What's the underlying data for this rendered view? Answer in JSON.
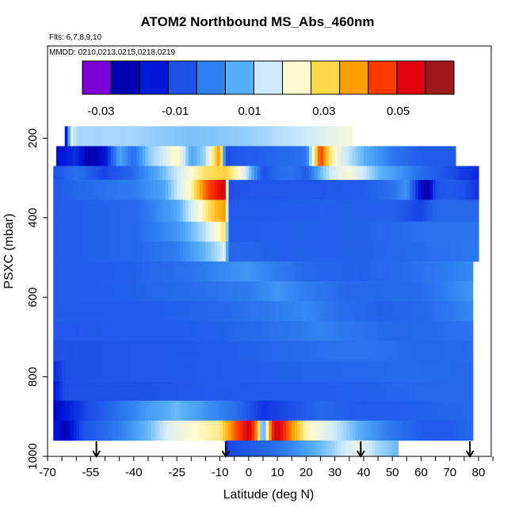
{
  "chart_data": {
    "type": "heatmap",
    "title": "ATOM2 Northbound MS_Abs_460nm",
    "subtitle_flts": "Flts: 6,7,8,9,10",
    "subtitle_mmdd": "MMDD: 0210,0213,0215,0218,0219",
    "xlabel": "Latitude (deg N)",
    "ylabel": "PSXC (mbar)",
    "xlim": [
      -70,
      85
    ],
    "ylim": [
      1000,
      0
    ],
    "x_ticks": [
      -70,
      -55,
      -40,
      -25,
      -10,
      0,
      10,
      20,
      30,
      40,
      50,
      60,
      70,
      80
    ],
    "x_tick_labels": [
      "-70",
      "-55",
      "-40",
      "-25",
      "-10",
      "0",
      "10",
      "20",
      "30",
      "40",
      "50",
      "60",
      "70",
      "80"
    ],
    "y_ticks": [
      200,
      400,
      600,
      800,
      1000
    ],
    "y_tick_labels": [
      "200",
      "400",
      "600",
      "800",
      "1000"
    ],
    "colorbar": {
      "min": -0.035,
      "max": 0.065,
      "tick_values": [
        -0.03,
        -0.01,
        0.01,
        0.03,
        0.05
      ],
      "tick_labels": [
        "-0.03",
        "-0.01",
        "0.01",
        "0.03",
        "0.05"
      ],
      "colors": [
        "#7a00d6",
        "#0000b0",
        "#0018d8",
        "#1e50e8",
        "#2e7ff0",
        "#58b0f8",
        "#cfeafc",
        "#fffbd0",
        "#ffd84a",
        "#ff9e00",
        "#ff3a00",
        "#e00010",
        "#9e1a1a"
      ]
    },
    "profile_markers_lat": [
      -53,
      -8,
      39,
      77
    ],
    "layers": [
      {
        "p_top": 170,
        "p_bot": 220,
        "lat_min": -64,
        "lat_max": 36,
        "nodes": [
          [
            -64,
            -0.033
          ],
          [
            -62,
            0.02
          ],
          [
            -60,
            0.012
          ],
          [
            -40,
            0.012
          ],
          [
            -20,
            0.009
          ],
          [
            0,
            0.011
          ],
          [
            20,
            0.015
          ],
          [
            36,
            0.022
          ]
        ]
      },
      {
        "p_top": 220,
        "p_bot": 270,
        "lat_min": -67,
        "lat_max": 72,
        "nodes": [
          [
            -67,
            -0.02
          ],
          [
            -60,
            -0.015
          ],
          [
            -55,
            -0.028
          ],
          [
            -50,
            -0.02
          ],
          [
            -45,
            0.005
          ],
          [
            -40,
            -0.005
          ],
          [
            -35,
            0.01
          ],
          [
            -30,
            0.015
          ],
          [
            -25,
            0.025
          ],
          [
            -20,
            0.005
          ],
          [
            -15,
            0.012
          ],
          [
            -10,
            0.042
          ],
          [
            -8,
            -0.01
          ],
          [
            0,
            -0.008
          ],
          [
            10,
            -0.006
          ],
          [
            20,
            -0.004
          ],
          [
            25,
            0.05
          ],
          [
            28,
            0.03
          ],
          [
            32,
            0.018
          ],
          [
            40,
            0.007
          ],
          [
            50,
            -0.003
          ],
          [
            60,
            -0.008
          ],
          [
            72,
            -0.008
          ]
        ]
      },
      {
        "p_top": 270,
        "p_bot": 305,
        "lat_min": -68,
        "lat_max": 80,
        "nodes": [
          [
            -68,
            -0.01
          ],
          [
            -60,
            -0.004
          ],
          [
            -50,
            -0.012
          ],
          [
            -40,
            -0.005
          ],
          [
            -30,
            0.008
          ],
          [
            -25,
            0.015
          ],
          [
            -15,
            0.03
          ],
          [
            -8,
            0.033
          ],
          [
            -2,
            0.02
          ],
          [
            5,
            -0.01
          ],
          [
            10,
            -0.005
          ],
          [
            15,
            -0.004
          ],
          [
            20,
            -0.008
          ],
          [
            25,
            0.008
          ],
          [
            30,
            0.018
          ],
          [
            35,
            0.022
          ],
          [
            45,
            0.008
          ],
          [
            55,
            0.0
          ],
          [
            60,
            -0.005
          ],
          [
            70,
            -0.01
          ],
          [
            80,
            -0.016
          ]
        ]
      },
      {
        "p_top": 305,
        "p_bot": 355,
        "lat_min": -68,
        "lat_max": 80,
        "nodes": [
          [
            -68,
            -0.008
          ],
          [
            -50,
            -0.004
          ],
          [
            -40,
            -0.002
          ],
          [
            -30,
            0.004
          ],
          [
            -20,
            0.025
          ],
          [
            -15,
            0.045
          ],
          [
            -10,
            0.055
          ],
          [
            -8,
            0.06
          ],
          [
            -7,
            -0.01
          ],
          [
            0,
            -0.009
          ],
          [
            20,
            -0.009
          ],
          [
            40,
            -0.008
          ],
          [
            50,
            -0.004
          ],
          [
            55,
            0.002
          ],
          [
            62,
            -0.03
          ],
          [
            65,
            -0.01
          ],
          [
            70,
            -0.008
          ],
          [
            75,
            -0.01
          ],
          [
            80,
            -0.014
          ]
        ]
      },
      {
        "p_top": 355,
        "p_bot": 410,
        "lat_min": -68,
        "lat_max": 80,
        "nodes": [
          [
            -68,
            -0.008
          ],
          [
            -40,
            -0.006
          ],
          [
            -25,
            0.005
          ],
          [
            -18,
            0.02
          ],
          [
            -12,
            0.035
          ],
          [
            -8,
            0.04
          ],
          [
            -7,
            -0.008
          ],
          [
            10,
            -0.008
          ],
          [
            30,
            -0.007
          ],
          [
            50,
            -0.007
          ],
          [
            60,
            -0.012
          ],
          [
            65,
            -0.006
          ],
          [
            80,
            -0.006
          ]
        ]
      },
      {
        "p_top": 410,
        "p_bot": 460,
        "lat_min": -68,
        "lat_max": 80,
        "nodes": [
          [
            -68,
            -0.008
          ],
          [
            -40,
            -0.006
          ],
          [
            -25,
            0.002
          ],
          [
            -15,
            0.014
          ],
          [
            -10,
            0.025
          ],
          [
            -8,
            0.03
          ],
          [
            -7,
            -0.008
          ],
          [
            10,
            -0.007
          ],
          [
            40,
            -0.007
          ],
          [
            60,
            -0.004
          ],
          [
            80,
            -0.004
          ]
        ]
      },
      {
        "p_top": 460,
        "p_bot": 510,
        "lat_min": -68,
        "lat_max": 80,
        "nodes": [
          [
            -68,
            -0.008
          ],
          [
            -40,
            -0.006
          ],
          [
            -25,
            -0.002
          ],
          [
            -15,
            0.008
          ],
          [
            -9,
            0.015
          ],
          [
            -8,
            0.018
          ],
          [
            -7,
            -0.006
          ],
          [
            10,
            -0.007
          ],
          [
            40,
            -0.007
          ],
          [
            60,
            -0.005
          ],
          [
            80,
            -0.003
          ]
        ]
      },
      {
        "p_top": 510,
        "p_bot": 560,
        "lat_min": -68,
        "lat_max": 78,
        "nodes": [
          [
            -68,
            -0.008
          ],
          [
            -40,
            -0.007
          ],
          [
            -20,
            -0.004
          ],
          [
            -10,
            0.0
          ],
          [
            0,
            0.002
          ],
          [
            10,
            -0.002
          ],
          [
            20,
            -0.006
          ],
          [
            40,
            -0.007
          ],
          [
            60,
            -0.004
          ],
          [
            78,
            0.0
          ]
        ]
      },
      {
        "p_top": 560,
        "p_bot": 610,
        "lat_min": -68,
        "lat_max": 78,
        "nodes": [
          [
            -68,
            -0.008
          ],
          [
            -40,
            -0.007
          ],
          [
            -20,
            -0.005
          ],
          [
            0,
            -0.002
          ],
          [
            10,
            0.002
          ],
          [
            20,
            -0.002
          ],
          [
            35,
            -0.006
          ],
          [
            60,
            -0.005
          ],
          [
            78,
            0.002
          ]
        ]
      },
      {
        "p_top": 610,
        "p_bot": 660,
        "lat_min": -68,
        "lat_max": 78,
        "nodes": [
          [
            -68,
            -0.008
          ],
          [
            -40,
            -0.008
          ],
          [
            -10,
            -0.006
          ],
          [
            10,
            -0.002
          ],
          [
            20,
            0.0
          ],
          [
            30,
            -0.004
          ],
          [
            45,
            -0.007
          ],
          [
            60,
            -0.006
          ],
          [
            78,
            0.0
          ]
        ]
      },
      {
        "p_top": 660,
        "p_bot": 710,
        "lat_min": -68,
        "lat_max": 78,
        "nodes": [
          [
            -68,
            -0.009
          ],
          [
            -40,
            -0.008
          ],
          [
            -10,
            -0.007
          ],
          [
            10,
            -0.004
          ],
          [
            25,
            -0.001
          ],
          [
            35,
            -0.003
          ],
          [
            50,
            -0.006
          ],
          [
            78,
            -0.004
          ]
        ]
      },
      {
        "p_top": 710,
        "p_bot": 760,
        "lat_min": -68,
        "lat_max": 78,
        "nodes": [
          [
            -68,
            -0.01
          ],
          [
            -40,
            -0.009
          ],
          [
            -10,
            -0.008
          ],
          [
            10,
            -0.006
          ],
          [
            30,
            -0.004
          ],
          [
            45,
            -0.004
          ],
          [
            60,
            -0.006
          ],
          [
            78,
            -0.005
          ]
        ]
      },
      {
        "p_top": 760,
        "p_bot": 810,
        "lat_min": -68,
        "lat_max": 78,
        "nodes": [
          [
            -68,
            -0.016
          ],
          [
            -64,
            -0.01
          ],
          [
            -40,
            -0.009
          ],
          [
            -10,
            -0.008
          ],
          [
            10,
            -0.007
          ],
          [
            40,
            -0.006
          ],
          [
            60,
            -0.005
          ],
          [
            78,
            -0.006
          ]
        ]
      },
      {
        "p_top": 810,
        "p_bot": 860,
        "lat_min": -68,
        "lat_max": 78,
        "nodes": [
          [
            -68,
            -0.02
          ],
          [
            -64,
            -0.01
          ],
          [
            -40,
            -0.01
          ],
          [
            -10,
            -0.008
          ],
          [
            10,
            -0.008
          ],
          [
            40,
            -0.007
          ],
          [
            60,
            -0.006
          ],
          [
            78,
            -0.006
          ]
        ]
      },
      {
        "p_top": 860,
        "p_bot": 910,
        "lat_min": -68,
        "lat_max": 78,
        "nodes": [
          [
            -68,
            -0.025
          ],
          [
            -64,
            -0.018
          ],
          [
            -55,
            -0.01
          ],
          [
            -45,
            -0.004
          ],
          [
            -35,
            0.003
          ],
          [
            -25,
            0.008
          ],
          [
            -15,
            0.002
          ],
          [
            -5,
            -0.004
          ],
          [
            5,
            -0.014
          ],
          [
            15,
            -0.01
          ],
          [
            25,
            -0.006
          ],
          [
            40,
            -0.008
          ],
          [
            60,
            -0.007
          ],
          [
            78,
            -0.006
          ]
        ]
      },
      {
        "p_top": 910,
        "p_bot": 960,
        "lat_min": -68,
        "lat_max": 78,
        "nodes": [
          [
            -68,
            -0.018
          ],
          [
            -64,
            -0.025
          ],
          [
            -58,
            -0.01
          ],
          [
            -45,
            -0.002
          ],
          [
            -35,
            0.008
          ],
          [
            -25,
            0.02
          ],
          [
            -15,
            0.025
          ],
          [
            -10,
            0.028
          ],
          [
            -5,
            0.045
          ],
          [
            -2,
            0.052
          ],
          [
            0,
            0.06
          ],
          [
            3,
            0.04
          ],
          [
            5,
            0.0
          ],
          [
            8,
            0.05
          ],
          [
            10,
            0.06
          ],
          [
            13,
            0.048
          ],
          [
            16,
            0.038
          ],
          [
            20,
            0.025
          ],
          [
            30,
            0.015
          ],
          [
            40,
            0.005
          ],
          [
            50,
            -0.003
          ],
          [
            60,
            -0.008
          ],
          [
            70,
            -0.008
          ],
          [
            78,
            -0.006
          ]
        ]
      },
      {
        "p_top": 960,
        "p_bot": 1000,
        "lat_min": -8,
        "lat_max": 52,
        "nodes": [
          [
            -8,
            -0.012
          ],
          [
            0,
            -0.008
          ],
          [
            10,
            -0.004
          ],
          [
            20,
            0.004
          ],
          [
            30,
            0.012
          ],
          [
            38,
            0.02
          ],
          [
            45,
            0.012
          ],
          [
            52,
            0.008
          ]
        ]
      }
    ]
  }
}
